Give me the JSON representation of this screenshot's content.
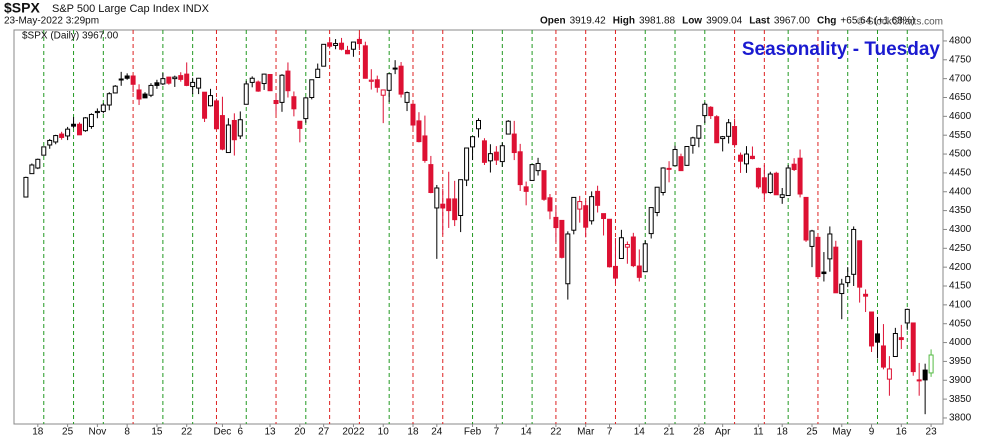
{
  "header": {
    "symbol": "$SPX",
    "name": "S&P 500 Large Cap Index INDX",
    "date": "23-May-2022 3:29pm",
    "copyright": "© StockCharts.com",
    "quote": [
      {
        "label": "Open",
        "value": "3919.42"
      },
      {
        "label": "High",
        "value": "3981.88"
      },
      {
        "label": "Low",
        "value": "3909.04"
      },
      {
        "label": "Last",
        "value": "3967.00"
      },
      {
        "label": "Chg",
        "value": "+65.64 (+1.68%)"
      }
    ]
  },
  "chart_data": {
    "type": "candlestick",
    "title": "Seasonality - Tuesday",
    "legend": "$SPX (Daily) 3967.00",
    "up_color": "#000000",
    "down_color": "#dd1133",
    "last_color": "#55bb44",
    "marker_up_color": "#229922",
    "marker_down_color": "#dd2222",
    "open": [
      4386,
      4448,
      4463,
      4497,
      4524,
      4532,
      4553,
      4548,
      4579,
      4579,
      4562,
      4573,
      4610,
      4613,
      4630,
      4662,
      4699,
      4707,
      4707,
      4670,
      4659,
      4656,
      4689,
      4686,
      4704,
      4700,
      4708,
      4712,
      4679,
      4675,
      4664,
      4628,
      4641,
      4602,
      4504,
      4589,
      4548,
      4632,
      4690,
      4691,
      4687,
      4711,
      4642,
      4637,
      4720,
      4652,
      4587,
      4594,
      4650,
      4703,
      4733,
      4795,
      4788,
      4794,
      4775,
      4778,
      4804,
      4787,
      4693,
      4697,
      4656,
      4669,
      4728,
      4733,
      4637,
      4632,
      4588,
      4548,
      4472,
      4357,
      4367,
      4381,
      4381,
      4337,
      4431,
      4519,
      4567,
      4535,
      4482,
      4505,
      4480,
      4553,
      4553,
      4506,
      4413,
      4430,
      4456,
      4456,
      4384,
      4332,
      4324,
      4156,
      4298,
      4354,
      4363,
      4323,
      4401,
      4342,
      4327,
      4202,
      4223,
      4253,
      4280,
      4203,
      4188,
      4289,
      4345,
      4398,
      4462,
      4469,
      4493,
      4470,
      4523,
      4542,
      4602,
      4624,
      4599,
      4541,
      4547,
      4573,
      4497,
      4474,
      4494,
      4462,
      4437,
      4398,
      4449,
      4385,
      4390,
      4473,
      4489,
      4385,
      4255,
      4279,
      4187,
      4222,
      4253,
      4130,
      4159,
      4181,
      4270,
      4128,
      4081,
      4023,
      3991,
      3903,
      3963,
      4013,
      4052,
      4052,
      3900,
      3927,
      3919.42
    ],
    "high": [
      4440,
      4475,
      4488,
      4520,
      4540,
      4551,
      4559,
      4572,
      4598,
      4584,
      4598,
      4608,
      4621,
      4635,
      4664,
      4683,
      4718,
      4714,
      4707,
      4685,
      4664,
      4688,
      4697,
      4715,
      4705,
      4708,
      4717,
      4743,
      4702,
      4702,
      4664,
      4673,
      4647,
      4652,
      4595,
      4608,
      4613,
      4694,
      4706,
      4695,
      4713,
      4712,
      4660,
      4712,
      4743,
      4666,
      4587,
      4651,
      4697,
      4740,
      4791,
      4807,
      4805,
      4808,
      4787,
      4797,
      4819,
      4798,
      4725,
      4708,
      4670,
      4714,
      4749,
      4744,
      4666,
      4632,
      4611,
      4602,
      4495,
      4418,
      4408,
      4453,
      4429,
      4432,
      4516,
      4546,
      4595,
      4542,
      4526,
      4521,
      4531,
      4590,
      4588,
      4527,
      4427,
      4472,
      4490,
      4456,
      4394,
      4363,
      4325,
      4295,
      4385,
      4389,
      4375,
      4401,
      4416,
      4342,
      4327,
      4277,
      4299,
      4268,
      4291,
      4247,
      4271,
      4358,
      4412,
      4465,
      4481,
      4522,
      4501,
      4520,
      4546,
      4575,
      4637,
      4627,
      4603,
      4548,
      4593,
      4594,
      4504,
      4521,
      4520,
      4464,
      4471,
      4453,
      4453,
      4410,
      4471,
      4489,
      4512,
      4385,
      4299,
      4279,
      4240,
      4308,
      4270,
      4169,
      4200,
      4308,
      4270,
      4141,
      4081,
      4068,
      4049,
      3964,
      4039,
      4047,
      4090,
      4052,
      3946,
      3944,
      3981.88
    ],
    "low": [
      4386,
      4448,
      4460,
      4496,
      4514,
      4526,
      4538,
      4537,
      4569,
      4551,
      4559,
      4567,
      4595,
      4608,
      4616,
      4662,
      4681,
      4697,
      4664,
      4630,
      4649,
      4651,
      4673,
      4683,
      4684,
      4678,
      4692,
      4680,
      4659,
      4659,
      4585,
      4626,
      4565,
      4510,
      4504,
      4496,
      4540,
      4632,
      4677,
      4665,
      4670,
      4667,
      4606,
      4612,
      4650,
      4600,
      4531,
      4583,
      4645,
      4703,
      4733,
      4780,
      4778,
      4775,
      4765,
      4758,
      4776,
      4700,
      4671,
      4663,
      4582,
      4638,
      4712,
      4650,
      4614,
      4569,
      4531,
      4477,
      4396,
      4222,
      4287,
      4304,
      4309,
      4293,
      4415,
      4484,
      4544,
      4471,
      4451,
      4471,
      4466,
      4553,
      4484,
      4402,
      4364,
      4430,
      4443,
      4376,
      4327,
      4267,
      4223,
      4114,
      4287,
      4318,
      4279,
      4313,
      4345,
      4284,
      4199,
      4157,
      4223,
      4209,
      4200,
      4162,
      4187,
      4276,
      4335,
      4390,
      4425,
      4469,
      4456,
      4469,
      4501,
      4518,
      4582,
      4593,
      4530,
      4507,
      4528,
      4517,
      4450,
      4450,
      4486,
      4408,
      4381,
      4395,
      4392,
      4368,
      4390,
      4455,
      4385,
      4267,
      4200,
      4174,
      4162,
      4188,
      4132,
      4062,
      4147,
      4150,
      4106,
      4081,
      3975,
      3958,
      3929,
      3859,
      3963,
      3983,
      4034,
      3912,
      3859,
      3810,
      3909.04
    ],
    "close": [
      4438,
      4471,
      4486,
      4519,
      4536,
      4549,
      4544,
      4566,
      4574,
      4551,
      4596,
      4605,
      4613,
      4630,
      4660,
      4680,
      4697,
      4701,
      4685,
      4646,
      4649,
      4682,
      4682,
      4700,
      4688,
      4704,
      4698,
      4682,
      4690,
      4701,
      4595,
      4655,
      4567,
      4513,
      4577,
      4538,
      4591,
      4686,
      4701,
      4667,
      4712,
      4668,
      4634,
      4709,
      4668,
      4620,
      4568,
      4649,
      4697,
      4725,
      4791,
      4786,
      4793,
      4778,
      4766,
      4797,
      4793,
      4701,
      4696,
      4677,
      4670,
      4713,
      4726,
      4659,
      4663,
      4577,
      4533,
      4483,
      4398,
      4410,
      4357,
      4350,
      4326,
      4432,
      4516,
      4546,
      4589,
      4478,
      4501,
      4484,
      4522,
      4587,
      4504,
      4419,
      4401,
      4472,
      4475,
      4380,
      4349,
      4305,
      4226,
      4288,
      4385,
      4374,
      4306,
      4387,
      4364,
      4329,
      4201,
      4171,
      4278,
      4260,
      4204,
      4173,
      4262,
      4358,
      4412,
      4463,
      4461,
      4512,
      4456,
      4520,
      4543,
      4575,
      4632,
      4602,
      4530,
      4546,
      4583,
      4525,
      4481,
      4500,
      4488,
      4413,
      4397,
      4447,
      4392,
      4392,
      4463,
      4459,
      4394,
      4272,
      4296,
      4175,
      4183,
      4288,
      4132,
      4155,
      4175,
      4300,
      4147,
      4123,
      3991,
      4001,
      3935,
      3930,
      4024,
      4008,
      4088,
      3923,
      3901,
      3901,
      3967.0
    ],
    "markers": [
      3,
      8,
      13,
      18,
      23,
      28,
      32,
      37,
      42,
      47,
      51,
      56,
      61,
      65,
      70,
      75,
      80,
      85,
      89,
      94,
      99,
      104,
      109,
      114,
      119,
      124,
      128,
      133,
      138,
      143,
      148
    ],
    "xlim": [
      -2,
      154
    ],
    "xticks": [
      {
        "value": 2,
        "label": "18"
      },
      {
        "value": 7,
        "label": "25"
      },
      {
        "value": 12,
        "label": "Nov"
      },
      {
        "value": 17,
        "label": "8"
      },
      {
        "value": 22,
        "label": "15"
      },
      {
        "value": 27,
        "label": "22"
      },
      {
        "value": 33,
        "label": "Dec"
      },
      {
        "value": 36,
        "label": "6"
      },
      {
        "value": 41,
        "label": "13"
      },
      {
        "value": 46,
        "label": "20"
      },
      {
        "value": 50,
        "label": "27"
      },
      {
        "value": 55,
        "label": "2022"
      },
      {
        "value": 60,
        "label": "10"
      },
      {
        "value": 65,
        "label": "18"
      },
      {
        "value": 69,
        "label": "24"
      },
      {
        "value": 75,
        "label": "Feb"
      },
      {
        "value": 79,
        "label": "7"
      },
      {
        "value": 84,
        "label": "14"
      },
      {
        "value": 89,
        "label": "22"
      },
      {
        "value": 94,
        "label": "Mar"
      },
      {
        "value": 98,
        "label": "7"
      },
      {
        "value": 103,
        "label": "14"
      },
      {
        "value": 108,
        "label": "21"
      },
      {
        "value": 113,
        "label": "28"
      },
      {
        "value": 117,
        "label": "Apr"
      },
      {
        "value": 123,
        "label": "11"
      },
      {
        "value": 127,
        "label": "18"
      },
      {
        "value": 132,
        "label": "25"
      },
      {
        "value": 137,
        "label": "May"
      },
      {
        "value": 142,
        "label": "9"
      },
      {
        "value": 147,
        "label": "16"
      },
      {
        "value": 152,
        "label": "23"
      }
    ],
    "ylim": [
      3784,
      4829
    ],
    "yticks": [
      3800,
      3850,
      3900,
      3950,
      4000,
      4050,
      4100,
      4150,
      4200,
      4250,
      4300,
      4350,
      4400,
      4450,
      4500,
      4550,
      4600,
      4650,
      4700,
      4750,
      4800
    ]
  }
}
